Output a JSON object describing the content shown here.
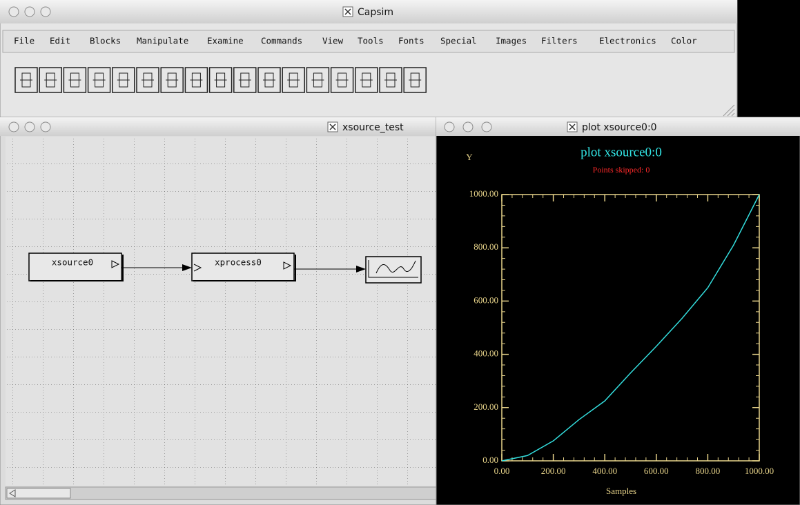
{
  "main_window": {
    "title": "Capsim",
    "menu": [
      "File",
      "Edit",
      "Blocks",
      "Manipulate",
      "Examine",
      "Commands",
      "View",
      "Tools",
      "Fonts",
      "Special",
      "Images",
      "Filters",
      "Electronics",
      "Color"
    ]
  },
  "editor_window": {
    "title": "xsource_test",
    "blocks": [
      "xsource0",
      "xprocess0"
    ]
  },
  "plot_window": {
    "title": "plot xsource0:0"
  },
  "chart_data": {
    "type": "line",
    "title": "plot xsource0:0",
    "subtitle": "Points skipped: 0",
    "y_label": "Y",
    "x_label": "Samples",
    "x": [
      0,
      100,
      200,
      300,
      400,
      500,
      600,
      700,
      800,
      900,
      1000
    ],
    "values": [
      0,
      20,
      75,
      155,
      225,
      330,
      430,
      535,
      650,
      810,
      1000
    ],
    "color": "#33dddd",
    "xlim": [
      0,
      1000
    ],
    "ylim": [
      0,
      1000
    ],
    "xticks": [
      {
        "value": 0,
        "label": "0.00"
      },
      {
        "value": 200,
        "label": "200.00"
      },
      {
        "value": 400,
        "label": "400.00"
      },
      {
        "value": 600,
        "label": "600.00"
      },
      {
        "value": 800,
        "label": "800.00"
      },
      {
        "value": 1000,
        "label": "1000.00"
      }
    ],
    "yticks": [
      {
        "value": 0,
        "label": "0.00"
      },
      {
        "value": 200,
        "label": "200.00"
      },
      {
        "value": 400,
        "label": "400.00"
      },
      {
        "value": 600,
        "label": "600.00"
      },
      {
        "value": 800,
        "label": "800.00"
      },
      {
        "value": 1000,
        "label": "1000.00"
      }
    ]
  }
}
